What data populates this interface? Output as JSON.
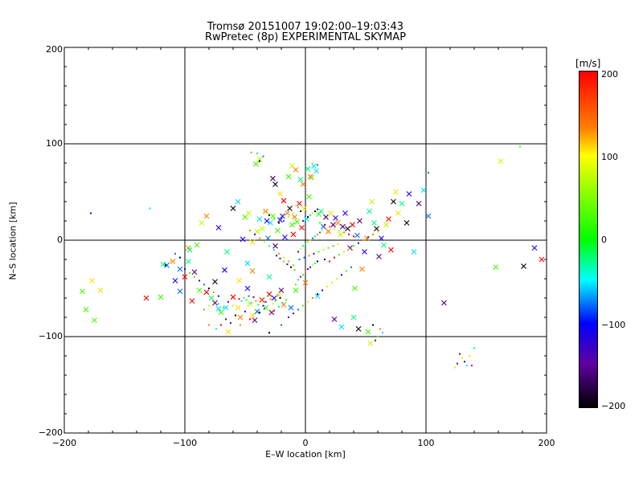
{
  "chart_data": {
    "type": "scatter",
    "title": "Tromsø 20151007 19:02:00–19:03:43",
    "subtitle": "RwPretec (8p) EXPERIMENTAL SKYMAP",
    "xlabel": "E–W location [km]",
    "ylabel": "N–S location [km]",
    "xlim": [
      -200,
      200
    ],
    "ylim": [
      -200,
      200
    ],
    "xticks": [
      "−200",
      "−100",
      "0",
      "100",
      "200"
    ],
    "yticks": [
      "−200",
      "−100",
      "0",
      "100",
      "200"
    ],
    "grid": true,
    "colorbar": {
      "unit": "[m/s]",
      "range": [
        -200,
        200
      ],
      "ticks": [
        "200",
        "100",
        "0",
        "−100",
        "−200"
      ]
    },
    "series": [
      {
        "marker": "x",
        "points": [
          [
            -185,
            -53
          ],
          [
            -182,
            -72
          ],
          [
            -177,
            -42
          ],
          [
            -175,
            -83
          ],
          [
            -170,
            -52
          ],
          [
            -132,
            -60
          ],
          [
            -120,
            -59
          ],
          [
            -118,
            -25
          ],
          [
            -115,
            -26
          ],
          [
            -108,
            -42
          ],
          [
            -104,
            -30
          ],
          [
            -100,
            -38
          ],
          [
            -97,
            -22
          ],
          [
            -97,
            -8
          ],
          [
            -94,
            -63
          ],
          [
            -88,
            -52
          ],
          [
            -82,
            -54
          ],
          [
            -78,
            -60
          ],
          [
            -75,
            -65
          ],
          [
            -72,
            -71
          ],
          [
            -70,
            -75
          ],
          [
            -66,
            -70
          ],
          [
            -64,
            -95
          ],
          [
            -60,
            -59
          ],
          [
            -56,
            -70
          ],
          [
            -55,
            -42
          ],
          [
            -48,
            -50
          ],
          [
            -46,
            -66
          ],
          [
            -44,
            -78
          ],
          [
            -42,
            -83
          ],
          [
            -40,
            -74
          ],
          [
            -36,
            -62
          ],
          [
            -33,
            -70
          ],
          [
            -30,
            -56
          ],
          [
            -28,
            -75
          ],
          [
            -26,
            -60
          ],
          [
            -22,
            -57
          ],
          [
            -20,
            -52
          ],
          [
            -18,
            -67
          ],
          [
            -90,
            -5
          ],
          [
            -65,
            -12
          ],
          [
            -72,
            13
          ],
          [
            -82,
            25
          ],
          [
            -86,
            18
          ],
          [
            -52,
            1
          ],
          [
            -50,
            24
          ],
          [
            -47,
            28
          ],
          [
            -44,
            -2
          ],
          [
            -40,
            9
          ],
          [
            -38,
            22
          ],
          [
            -36,
            12
          ],
          [
            -33,
            30
          ],
          [
            -31,
            2
          ],
          [
            -29,
            18
          ],
          [
            -27,
            25
          ],
          [
            -25,
            -6
          ],
          [
            -23,
            10
          ],
          [
            -21,
            21
          ],
          [
            -19,
            25
          ],
          [
            -17,
            3
          ],
          [
            -15,
            28
          ],
          [
            -13,
            33
          ],
          [
            -11,
            16
          ],
          [
            -9,
            24
          ],
          [
            -7,
            19
          ],
          [
            -5,
            38
          ],
          [
            -3,
            13
          ],
          [
            -1,
            33
          ],
          [
            1,
            22
          ],
          [
            3,
            45
          ],
          [
            5,
            65
          ],
          [
            7,
            77
          ],
          [
            9,
            72
          ],
          [
            11,
            27
          ],
          [
            13,
            30
          ],
          [
            15,
            14
          ],
          [
            17,
            24
          ],
          [
            19,
            9
          ],
          [
            21,
            28
          ],
          [
            23,
            16
          ],
          [
            25,
            23
          ],
          [
            27,
            18
          ],
          [
            29,
            6
          ],
          [
            31,
            14
          ],
          [
            33,
            28
          ],
          [
            35,
            12
          ],
          [
            37,
            -8
          ],
          [
            39,
            16
          ],
          [
            41,
            -50
          ],
          [
            43,
            5
          ],
          [
            45,
            20
          ],
          [
            47,
            -30
          ],
          [
            49,
            -12
          ],
          [
            51,
            2
          ],
          [
            53,
            30
          ],
          [
            55,
            40
          ],
          [
            57,
            18
          ],
          [
            59,
            12
          ],
          [
            61,
            -17
          ],
          [
            63,
            2
          ],
          [
            65,
            -5
          ],
          [
            67,
            16
          ],
          [
            69,
            22
          ],
          [
            71,
            -10
          ],
          [
            73,
            40
          ],
          [
            75,
            50
          ],
          [
            77,
            28
          ],
          [
            80,
            38
          ],
          [
            84,
            18
          ],
          [
            86,
            48
          ],
          [
            90,
            -12
          ],
          [
            94,
            38
          ],
          [
            98,
            52
          ],
          [
            102,
            25
          ],
          [
            115,
            -65
          ],
          [
            162,
            82
          ],
          [
            158,
            -28
          ],
          [
            181,
            -27
          ],
          [
            190,
            -8
          ],
          [
            196,
            -20
          ],
          [
            -56,
            40
          ],
          [
            -60,
            33
          ],
          [
            -54,
            -80
          ],
          [
            -44,
            -32
          ],
          [
            -48,
            -24
          ],
          [
            -30,
            -38
          ],
          [
            -27,
            64
          ],
          [
            -25,
            58
          ],
          [
            -21,
            48
          ],
          [
            -18,
            41
          ],
          [
            -14,
            66
          ],
          [
            -11,
            77
          ],
          [
            -8,
            73
          ],
          [
            -4,
            63
          ],
          [
            -2,
            58
          ],
          [
            2,
            74
          ],
          [
            4,
            66
          ],
          [
            -38,
            84
          ],
          [
            -41,
            79
          ],
          [
            -32,
            20
          ],
          [
            -10,
            6
          ],
          [
            40,
            -80
          ],
          [
            30,
            -90
          ],
          [
            52,
            -95
          ],
          [
            54,
            -107
          ],
          [
            44,
            -92
          ],
          [
            24,
            -82
          ],
          [
            10,
            -58
          ],
          [
            0,
            -44
          ],
          [
            -8,
            -52
          ],
          [
            -12,
            -70
          ],
          [
            -67,
            -31
          ],
          [
            -75,
            -43
          ],
          [
            -92,
            -33
          ],
          [
            -104,
            -53
          ],
          [
            -110,
            -22
          ],
          [
            -96,
            -10
          ]
        ]
      },
      {
        "marker": "dot",
        "points": [
          [
            -55,
            -61
          ],
          [
            -53,
            -63
          ],
          [
            -51,
            -60
          ],
          [
            -49,
            -62
          ],
          [
            -47,
            -58
          ],
          [
            -45,
            -65
          ],
          [
            -43,
            -59
          ],
          [
            -41,
            -63
          ],
          [
            -39,
            -67
          ],
          [
            -37,
            -62
          ],
          [
            -35,
            -68
          ],
          [
            -33,
            -64
          ],
          [
            -31,
            -58
          ],
          [
            -29,
            -61
          ],
          [
            -27,
            -66
          ],
          [
            -25,
            -63
          ],
          [
            -23,
            -57
          ],
          [
            -21,
            -60
          ],
          [
            -42,
            -72
          ],
          [
            -38,
            -75
          ],
          [
            -34,
            -71
          ],
          [
            -30,
            -74
          ],
          [
            -26,
            -73
          ],
          [
            -22,
            -69
          ],
          [
            -19,
            -65
          ],
          [
            -16,
            -62
          ],
          [
            -8,
            -46
          ],
          [
            -6,
            -41
          ],
          [
            -4,
            -38
          ],
          [
            -2,
            -36
          ],
          [
            0,
            -33
          ],
          [
            2,
            -30
          ],
          [
            4,
            -28
          ],
          [
            6,
            -26
          ],
          [
            8,
            -24
          ],
          [
            10,
            -22
          ],
          [
            -6,
            -12
          ],
          [
            -4,
            -9
          ],
          [
            -2,
            -6
          ],
          [
            0,
            -4
          ],
          [
            2,
            -2
          ],
          [
            4,
            0
          ],
          [
            6,
            2
          ],
          [
            8,
            4
          ],
          [
            10,
            6
          ],
          [
            12,
            8
          ],
          [
            14,
            10
          ],
          [
            -5,
            -20
          ],
          [
            -1,
            -18
          ],
          [
            3,
            -16
          ],
          [
            7,
            -14
          ],
          [
            11,
            -12
          ],
          [
            15,
            -10
          ],
          [
            19,
            -8
          ],
          [
            23,
            -6
          ],
          [
            27,
            -4
          ],
          [
            -12,
            -28
          ],
          [
            -9,
            -31
          ],
          [
            -15,
            -25
          ],
          [
            -18,
            -22
          ],
          [
            -21,
            -19
          ],
          [
            -24,
            -16
          ],
          [
            16,
            -20
          ],
          [
            20,
            -22
          ],
          [
            24,
            -18
          ],
          [
            28,
            -15
          ],
          [
            32,
            -12
          ],
          [
            36,
            -9
          ],
          [
            40,
            -6
          ],
          [
            44,
            -3
          ],
          [
            48,
            0
          ],
          [
            52,
            3
          ],
          [
            56,
            6
          ],
          [
            60,
            9
          ],
          [
            -2,
            20
          ],
          [
            0,
            22
          ],
          [
            2,
            24
          ],
          [
            4,
            26
          ],
          [
            6,
            28
          ],
          [
            8,
            30
          ],
          [
            10,
            32
          ],
          [
            -4,
            30
          ],
          [
            -6,
            34
          ],
          [
            -8,
            36
          ],
          [
            -10,
            28
          ],
          [
            -14,
            24
          ],
          [
            -18,
            20
          ],
          [
            -22,
            18
          ],
          [
            -26,
            22
          ],
          [
            -30,
            26
          ],
          [
            -34,
            30
          ],
          [
            12,
            18
          ],
          [
            16,
            16
          ],
          [
            20,
            14
          ],
          [
            24,
            12
          ],
          [
            28,
            10
          ],
          [
            32,
            8
          ],
          [
            36,
            6
          ],
          [
            40,
            4
          ],
          [
            -60,
            -68
          ],
          [
            -64,
            -64
          ],
          [
            -68,
            -70
          ],
          [
            -72,
            -66
          ],
          [
            -76,
            -62
          ],
          [
            -80,
            -68
          ],
          [
            -84,
            -72
          ],
          [
            -66,
            -82
          ],
          [
            -58,
            -78
          ],
          [
            -50,
            -74
          ],
          [
            -46,
            -82
          ],
          [
            -62,
            -86
          ],
          [
            -70,
            -88
          ],
          [
            -54,
            -88
          ],
          [
            -30,
            -96
          ],
          [
            -20,
            -88
          ],
          [
            -14,
            -80
          ],
          [
            -10,
            -76
          ],
          [
            -6,
            -72
          ],
          [
            -2,
            -68
          ],
          [
            2,
            -64
          ],
          [
            6,
            -60
          ],
          [
            10,
            -56
          ],
          [
            14,
            -52
          ],
          [
            18,
            -48
          ],
          [
            22,
            -44
          ],
          [
            26,
            -40
          ],
          [
            30,
            -36
          ],
          [
            34,
            -32
          ],
          [
            38,
            -28
          ],
          [
            -100,
            -30
          ],
          [
            -96,
            -34
          ],
          [
            -92,
            -38
          ],
          [
            -88,
            -42
          ],
          [
            -84,
            -46
          ],
          [
            -80,
            -50
          ],
          [
            -76,
            -54
          ],
          [
            -72,
            -58
          ],
          [
            -108,
            -14
          ],
          [
            -104,
            -18
          ],
          [
            -112,
            -22
          ],
          [
            -116,
            -26
          ],
          [
            -46,
            10
          ],
          [
            -42,
            6
          ],
          [
            -38,
            2
          ],
          [
            -34,
            -2
          ],
          [
            -30,
            -6
          ],
          [
            -26,
            -10
          ],
          [
            -22,
            -14
          ],
          [
            -18,
            -18
          ],
          [
            -14,
            -22
          ],
          [
            -10,
            -26
          ],
          [
            128,
            -118
          ],
          [
            130,
            -122
          ],
          [
            132,
            -126
          ],
          [
            134,
            -130
          ],
          [
            126,
            -128
          ],
          [
            124,
            -132
          ],
          [
            138,
            -130
          ],
          [
            140,
            -112
          ],
          [
            136,
            -120
          ],
          [
            -178,
            28
          ],
          [
            -129,
            33
          ],
          [
            -45,
            91
          ],
          [
            -40,
            90
          ],
          [
            -35,
            87
          ],
          [
            -38,
            82
          ],
          [
            6,
            80
          ],
          [
            10,
            78
          ],
          [
            102,
            70
          ],
          [
            178,
            97
          ],
          [
            56,
            -88
          ],
          [
            62,
            -92
          ],
          [
            64,
            -96
          ],
          [
            60,
            -100
          ],
          [
            58,
            -104
          ],
          [
            -80,
            -88
          ],
          [
            -74,
            -92
          ]
        ]
      }
    ]
  }
}
